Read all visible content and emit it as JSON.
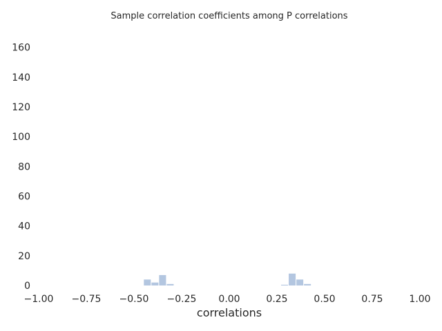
{
  "chart_data": {
    "type": "bar",
    "title": "Sample correlation coefficients among P correlations",
    "xlabel": "correlations",
    "ylabel": "",
    "xlim": [
      -1.0,
      1.0
    ],
    "ylim": [
      0,
      170
    ],
    "xticks": [
      -1.0,
      -0.75,
      -0.5,
      -0.25,
      0.0,
      0.25,
      0.5,
      0.75,
      1.0
    ],
    "xtick_labels": [
      "−1.00",
      "−0.75",
      "−0.50",
      "−0.25",
      "0.00",
      "0.25",
      "0.50",
      "0.75",
      "1.00"
    ],
    "yticks": [
      0,
      20,
      40,
      60,
      80,
      100,
      120,
      140,
      160
    ],
    "ytick_labels": [
      "0",
      "20",
      "40",
      "60",
      "80",
      "100",
      "120",
      "140",
      "160"
    ],
    "grid": false,
    "bar_color": "#b3c6e0",
    "bins": [
      {
        "x0": -0.45,
        "x1": -0.41,
        "count": 4
      },
      {
        "x0": -0.41,
        "x1": -0.37,
        "count": 2
      },
      {
        "x0": -0.37,
        "x1": -0.33,
        "count": 7
      },
      {
        "x0": -0.33,
        "x1": -0.29,
        "count": 1
      },
      {
        "x0": 0.27,
        "x1": 0.31,
        "count": 0.5
      },
      {
        "x0": 0.31,
        "x1": 0.35,
        "count": 8
      },
      {
        "x0": 0.35,
        "x1": 0.39,
        "count": 4
      },
      {
        "x0": 0.39,
        "x1": 0.43,
        "count": 1
      }
    ]
  }
}
